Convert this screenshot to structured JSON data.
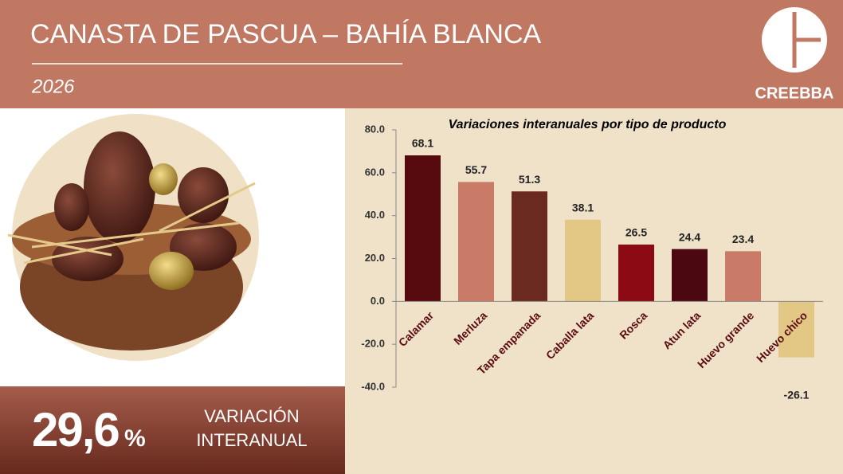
{
  "header": {
    "title": "CANASTA DE PASCUA – BAHÍA BLANCA",
    "subtitle": "2026",
    "logo": "CREEBBA"
  },
  "highlight": {
    "value": "29,6",
    "unit": "%",
    "label": "VARIACIÓN INTERANUAL"
  },
  "chart_data": {
    "type": "bar",
    "title": "Variaciones interanuales por tipo de producto",
    "categories": [
      "Calamar",
      "Merluza",
      "Tapa empanada",
      "Caballa lata",
      "Rosca",
      "Atun lata",
      "Huevo grande",
      "Huevo chico"
    ],
    "values": [
      68.1,
      55.7,
      51.3,
      38.1,
      26.5,
      24.4,
      23.4,
      -26.1
    ],
    "colors": [
      "#560a0e",
      "#c97b67",
      "#6b2a1f",
      "#e3c785",
      "#8c0a14",
      "#4b0810",
      "#c97b67",
      "#e3c785"
    ],
    "ylim": [
      -40,
      80
    ],
    "yticks": [
      {
        "value": -40,
        "label": "-40.0"
      },
      {
        "value": -20,
        "label": "-20.0"
      },
      {
        "value": 0,
        "label": "0.0"
      },
      {
        "value": 20,
        "label": "20.0"
      },
      {
        "value": 40,
        "label": "40.0"
      },
      {
        "value": 60,
        "label": "60.0"
      },
      {
        "value": 80,
        "label": "80.0"
      }
    ],
    "grid": false
  }
}
